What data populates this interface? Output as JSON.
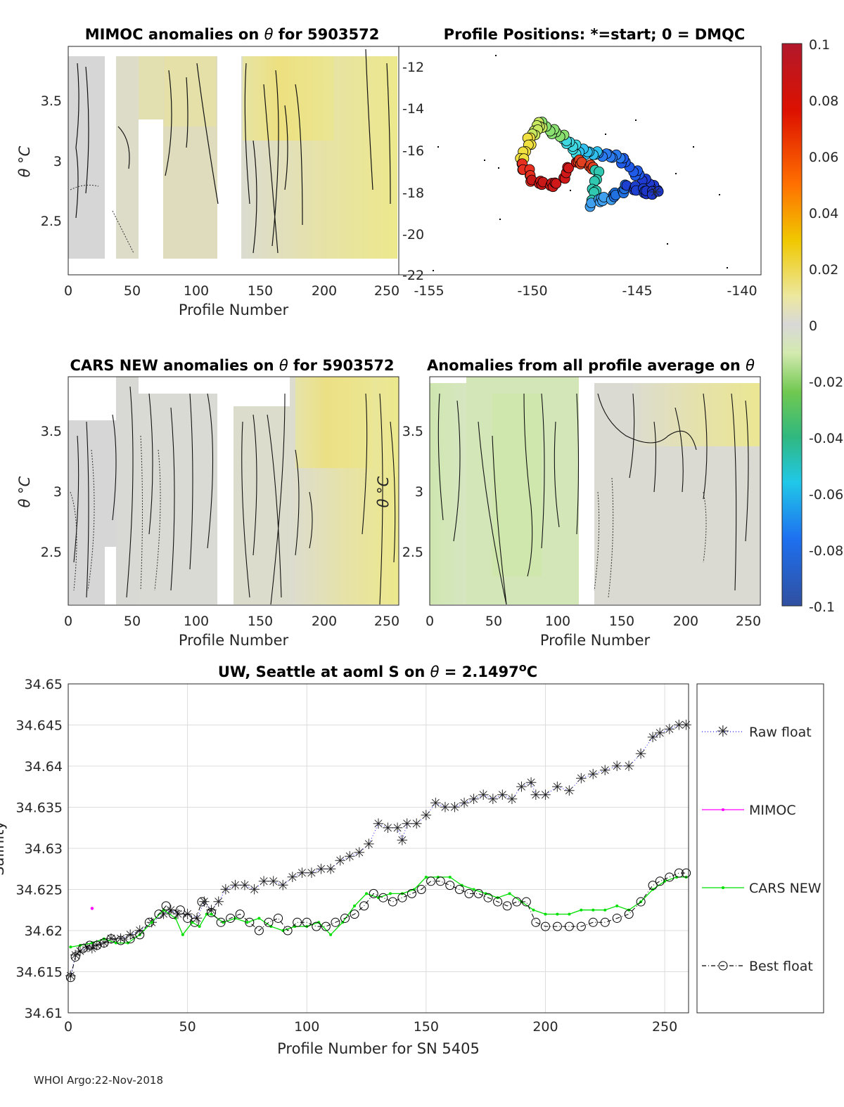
{
  "footer": "WHOI Argo:22-Nov-2018",
  "colorbar": {
    "ticks": [
      "0.1",
      "0.08",
      "0.06",
      "0.04",
      "0.02",
      "0",
      "-0.02",
      "-0.04",
      "-0.06",
      "-0.08",
      "-0.1"
    ],
    "colors": [
      "#b2182b",
      "#cc0000",
      "#ee3300",
      "#ff7a00",
      "#ffb000",
      "#e8d000",
      "#ece89a",
      "#d8d8d8",
      "#d0e8a8",
      "#9ad66c",
      "#40c040",
      "#20b8a0",
      "#20c8e8",
      "#1e90ff",
      "#2050e0",
      "#3050a0"
    ]
  },
  "panels": {
    "mimoc": {
      "title_pre": "MIMOC anomalies on ",
      "theta": "θ",
      "title_post": "  for 5903572",
      "ylabel": "θ °C",
      "xlabel": "Profile Number",
      "xticks": [
        "0",
        "50",
        "100",
        "150",
        "200",
        "250"
      ],
      "yticks": [
        "3.5",
        "3",
        "2.5"
      ]
    },
    "positions": {
      "title": "Profile Positions: *=start; 0 = DMQC",
      "xticks": [
        "-155",
        "-150",
        "-145",
        "-140"
      ],
      "yticks": [
        "-12",
        "-14",
        "-16",
        "-18",
        "-20",
        "-22"
      ]
    },
    "cars": {
      "title_pre": "CARS NEW anomalies on ",
      "theta": "θ",
      "title_post": " for 5903572",
      "ylabel": "θ °C",
      "xlabel": "Profile Number",
      "xticks": [
        "0",
        "50",
        "100",
        "150",
        "200",
        "250"
      ],
      "yticks": [
        "3.5",
        "3",
        "2.5"
      ]
    },
    "average": {
      "title_pre": "Anomalies from all profile average on ",
      "theta": "θ",
      "ylabel": "θ °C",
      "xlabel": "Profile Number",
      "xticks": [
        "0",
        "50",
        "100",
        "150",
        "200",
        "250"
      ],
      "yticks": [
        "3.5",
        "3",
        "2.5"
      ]
    }
  },
  "chart_data": {
    "type": "line",
    "title_pre": "UW, Seattle at aoml S on ",
    "theta": "θ",
    "title_eq": " = 2.1497",
    "title_deg": "o",
    "title_unit": "C",
    "xlabel": "Profile Number for SN 5405",
    "ylabel": "Salinity",
    "xlim": [
      0,
      260
    ],
    "ylim": [
      34.61,
      34.65
    ],
    "xticks": [
      "0",
      "50",
      "100",
      "150",
      "200",
      "250"
    ],
    "yticks": [
      "34.65",
      "34.645",
      "34.64",
      "34.635",
      "34.63",
      "34.625",
      "34.62",
      "34.615",
      "34.61"
    ],
    "legend_position": "right-outside",
    "series": [
      {
        "name": "Raw float",
        "color": "#1f1fff",
        "style": "dotted-star",
        "x": [
          1,
          3,
          5,
          8,
          10,
          12,
          15,
          18,
          22,
          26,
          30,
          35,
          40,
          43,
          46,
          50,
          54,
          57,
          60,
          63,
          66,
          70,
          74,
          78,
          82,
          86,
          90,
          94,
          98,
          102,
          106,
          110,
          114,
          118,
          122,
          126,
          130,
          134,
          138,
          140,
          142,
          146,
          150,
          154,
          158,
          162,
          166,
          170,
          174,
          178,
          182,
          186,
          190,
          194,
          196,
          200,
          205,
          210,
          215,
          220,
          225,
          230,
          235,
          240,
          245,
          248,
          252,
          256,
          259
        ],
        "y": [
          34.6145,
          34.617,
          34.6175,
          34.618,
          34.6178,
          34.6182,
          34.6185,
          34.619,
          34.619,
          34.6195,
          34.62,
          34.621,
          34.622,
          34.6225,
          34.622,
          34.622,
          34.6215,
          34.6235,
          34.6225,
          34.6235,
          34.625,
          34.6255,
          34.6255,
          34.625,
          34.626,
          34.626,
          34.6255,
          34.6265,
          34.627,
          34.627,
          34.6275,
          34.6275,
          34.6285,
          34.629,
          34.6295,
          34.6305,
          34.633,
          34.6325,
          34.6325,
          34.631,
          34.633,
          34.633,
          34.634,
          34.6355,
          34.635,
          34.635,
          34.6355,
          34.636,
          34.6365,
          34.636,
          34.6365,
          34.636,
          34.6375,
          34.638,
          34.6365,
          34.6365,
          34.6375,
          34.637,
          34.6385,
          34.639,
          34.6395,
          34.64,
          34.64,
          34.6415,
          34.6435,
          34.644,
          34.6445,
          34.645,
          34.645
        ]
      },
      {
        "name": "MIMOC",
        "color": "#ff00ff",
        "style": "dot",
        "x": [
          10
        ],
        "y": [
          34.6227
        ]
      },
      {
        "name": "CARS NEW",
        "color": "#00e000",
        "style": "solid-dot",
        "x": [
          1,
          5,
          10,
          15,
          20,
          25,
          30,
          35,
          40,
          45,
          48,
          52,
          55,
          58,
          60,
          65,
          70,
          75,
          80,
          85,
          90,
          95,
          100,
          105,
          110,
          115,
          120,
          125,
          130,
          135,
          140,
          145,
          150,
          155,
          160,
          165,
          170,
          175,
          180,
          185,
          190,
          195,
          200,
          205,
          210,
          215,
          220,
          225,
          230,
          235,
          240,
          245,
          250,
          255,
          259
        ],
        "y": [
          34.618,
          34.6182,
          34.6185,
          34.619,
          34.6185,
          34.6185,
          34.6195,
          34.621,
          34.6225,
          34.6215,
          34.6195,
          34.621,
          34.6205,
          34.622,
          34.622,
          34.621,
          34.6215,
          34.621,
          34.6215,
          34.6205,
          34.62,
          34.6205,
          34.6205,
          34.621,
          34.6195,
          34.621,
          34.623,
          34.6245,
          34.624,
          34.6245,
          34.6245,
          34.625,
          34.6265,
          34.6265,
          34.6265,
          34.6255,
          34.625,
          34.6245,
          34.624,
          34.6245,
          34.6235,
          34.6225,
          34.622,
          34.622,
          34.622,
          34.6225,
          34.6225,
          34.6225,
          34.623,
          34.6225,
          34.6235,
          34.625,
          34.626,
          34.6265,
          34.6265
        ]
      },
      {
        "name": "Best float",
        "color": "#000000",
        "style": "dashdot-circle",
        "x": [
          1,
          3,
          6,
          9,
          12,
          15,
          18,
          22,
          26,
          30,
          34,
          38,
          41,
          44,
          47,
          50,
          53,
          56,
          60,
          64,
          68,
          72,
          76,
          80,
          84,
          88,
          92,
          96,
          100,
          104,
          108,
          112,
          116,
          120,
          124,
          128,
          132,
          136,
          140,
          144,
          148,
          152,
          156,
          160,
          164,
          168,
          172,
          176,
          180,
          184,
          188,
          192,
          196,
          200,
          205,
          210,
          215,
          220,
          225,
          230,
          235,
          240,
          245,
          248,
          252,
          256,
          259
        ],
        "y": [
          34.6143,
          34.6168,
          34.6178,
          34.6182,
          34.6182,
          34.6185,
          34.619,
          34.6188,
          34.619,
          34.6195,
          34.621,
          34.622,
          34.623,
          34.622,
          34.6225,
          34.6215,
          34.621,
          34.6235,
          34.6222,
          34.621,
          34.6215,
          34.622,
          34.621,
          34.62,
          34.621,
          34.6215,
          34.62,
          34.621,
          34.621,
          34.6205,
          34.6205,
          34.621,
          34.6215,
          34.622,
          34.623,
          34.6245,
          34.624,
          34.6235,
          34.624,
          34.6245,
          34.625,
          34.626,
          34.626,
          34.6255,
          34.625,
          34.6245,
          34.6245,
          34.624,
          34.6235,
          34.623,
          34.6235,
          34.6235,
          34.621,
          34.6205,
          34.6205,
          34.6205,
          34.6205,
          34.621,
          34.621,
          34.6215,
          34.622,
          34.6235,
          34.6255,
          34.626,
          34.6265,
          34.627,
          34.627
        ]
      }
    ]
  }
}
